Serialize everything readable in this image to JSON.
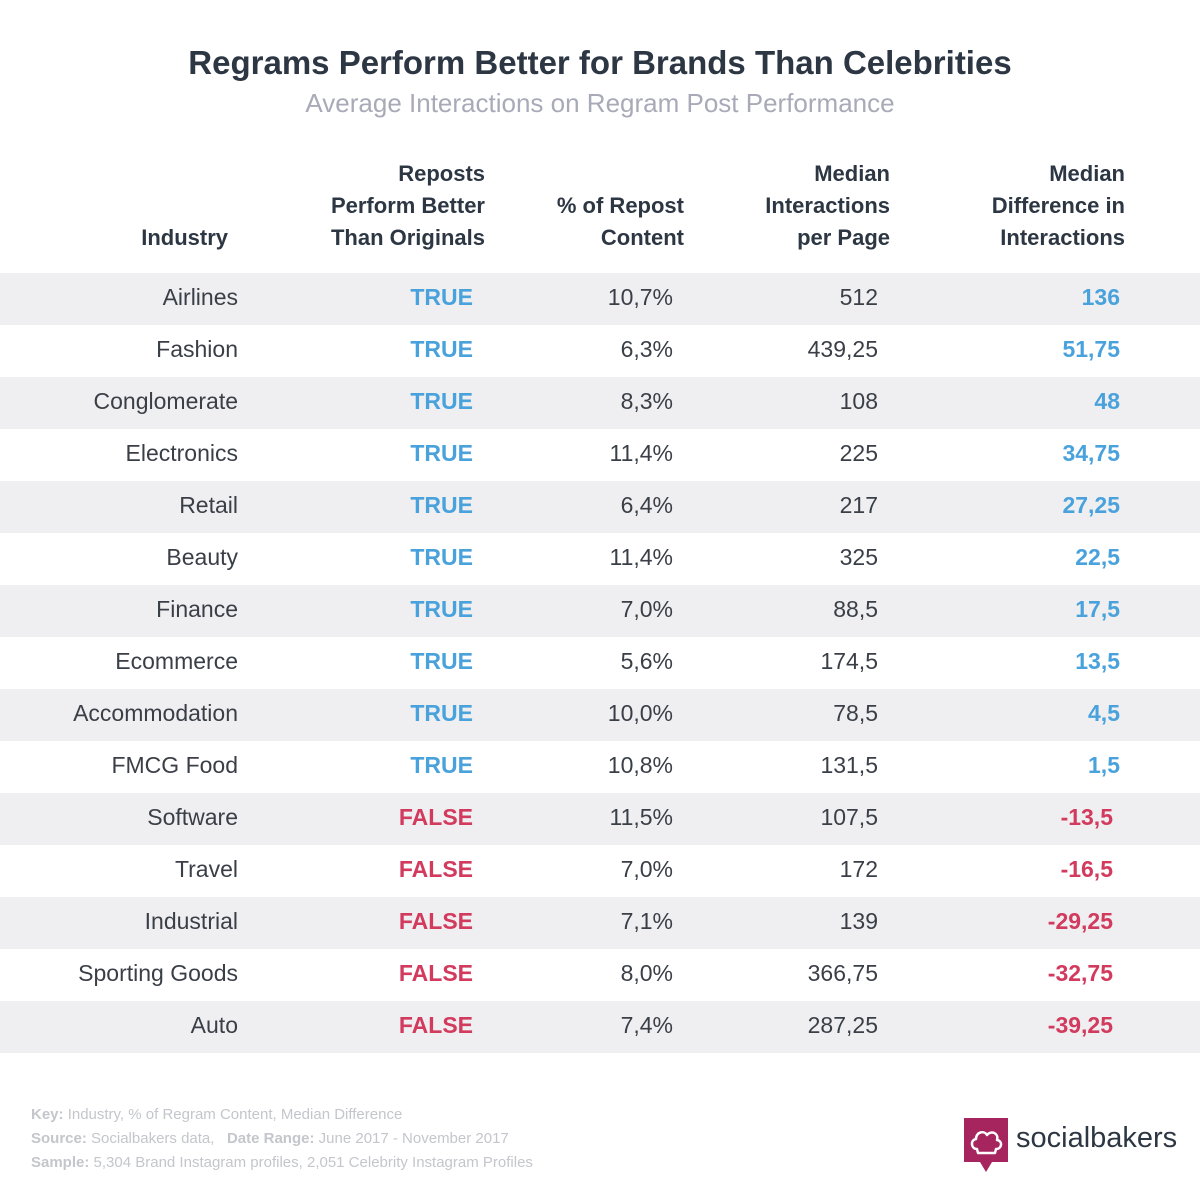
{
  "title": "Regrams Perform Better for Brands Than Celebrities",
  "subtitle": "Average Interactions on Regram Post Performance",
  "colors": {
    "true": "#4aa2dc",
    "false": "#d23a5e",
    "title": "#2d3743",
    "subtitle": "#a9aab8",
    "band": "#efeff1",
    "logo": "#a6255f"
  },
  "chart_data": {
    "type": "table",
    "title": "Regrams Perform Better for Brands Than Celebrities",
    "subtitle": "Average Interactions on Regram Post Performance",
    "columns": [
      [
        "Industry"
      ],
      [
        "Reposts",
        "Perform Better",
        "Than Originals"
      ],
      [
        "% of Repost",
        "Content"
      ],
      [
        "Median",
        "Interactions",
        "per Page"
      ],
      [
        "Median",
        "Difference in",
        "Interactions"
      ]
    ],
    "rows": [
      {
        "industry": "Airlines",
        "better": "TRUE",
        "pct": "10,7%",
        "interactions": "512",
        "diff": "136"
      },
      {
        "industry": "Fashion",
        "better": "TRUE",
        "pct": "6,3%",
        "interactions": "439,25",
        "diff": "51,75"
      },
      {
        "industry": "Conglomerate",
        "better": "TRUE",
        "pct": "8,3%",
        "interactions": "108",
        "diff": "48"
      },
      {
        "industry": "Electronics",
        "better": "TRUE",
        "pct": "11,4%",
        "interactions": "225",
        "diff": "34,75"
      },
      {
        "industry": "Retail",
        "better": "TRUE",
        "pct": "6,4%",
        "interactions": "217",
        "diff": "27,25"
      },
      {
        "industry": "Beauty",
        "better": "TRUE",
        "pct": "11,4%",
        "interactions": "325",
        "diff": "22,5"
      },
      {
        "industry": "Finance",
        "better": "TRUE",
        "pct": "7,0%",
        "interactions": "88,5",
        "diff": "17,5"
      },
      {
        "industry": "Ecommerce",
        "better": "TRUE",
        "pct": "5,6%",
        "interactions": "174,5",
        "diff": "13,5"
      },
      {
        "industry": "Accommodation",
        "better": "TRUE",
        "pct": "10,0%",
        "interactions": "78,5",
        "diff": "4,5"
      },
      {
        "industry": "FMCG Food",
        "better": "TRUE",
        "pct": "10,8%",
        "interactions": "131,5",
        "diff": "1,5"
      },
      {
        "industry": "Software",
        "better": "FALSE",
        "pct": "11,5%",
        "interactions": "107,5",
        "diff": "-13,5"
      },
      {
        "industry": "Travel",
        "better": "FALSE",
        "pct": "7,0%",
        "interactions": "172",
        "diff": "-16,5"
      },
      {
        "industry": "Industrial",
        "better": "FALSE",
        "pct": "7,1%",
        "interactions": "139",
        "diff": "-29,25"
      },
      {
        "industry": "Sporting Goods",
        "better": "FALSE",
        "pct": "8,0%",
        "interactions": "366,75",
        "diff": "-32,75"
      },
      {
        "industry": "Auto",
        "better": "FALSE",
        "pct": "7,4%",
        "interactions": "287,25",
        "diff": "-39,25"
      }
    ]
  },
  "footer": {
    "key_label": "Key:",
    "key_text": "Industry, % of Regram Content, Median Difference",
    "source_label": "Source:",
    "source_text": "Socialbakers data,",
    "range_label": "Date Range:",
    "range_text": "June 2017 - November 2017",
    "sample_label": "Sample:",
    "sample_text": "5,304 Brand Instagram profiles, 2,051 Celebrity Instagram Profiles"
  },
  "logo": {
    "text": "socialbakers",
    "icon": "chef-hat-icon"
  }
}
